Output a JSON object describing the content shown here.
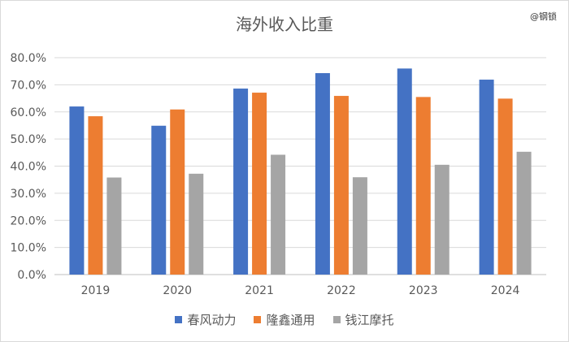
{
  "watermark": "@钢锁",
  "chart_data": {
    "type": "bar",
    "title": "海外收入比重",
    "categories": [
      "2019",
      "2020",
      "2021",
      "2022",
      "2023",
      "2024"
    ],
    "series": [
      {
        "name": "春风动力",
        "color": "#4472c4",
        "values": [
          0.62,
          0.549,
          0.686,
          0.743,
          0.76,
          0.719
        ]
      },
      {
        "name": "隆鑫通用",
        "color": "#ed7d31",
        "values": [
          0.584,
          0.609,
          0.671,
          0.659,
          0.655,
          0.649
        ]
      },
      {
        "name": "钱江摩托",
        "color": "#a5a5a5",
        "values": [
          0.358,
          0.372,
          0.442,
          0.359,
          0.405,
          0.453
        ]
      }
    ],
    "ylim": [
      0,
      0.8
    ],
    "yticks": [
      "0.0%",
      "10.0%",
      "20.0%",
      "30.0%",
      "40.0%",
      "50.0%",
      "60.0%",
      "70.0%",
      "80.0%"
    ],
    "grid": true,
    "legend_position": "bottom",
    "xlabel": "",
    "ylabel": ""
  }
}
